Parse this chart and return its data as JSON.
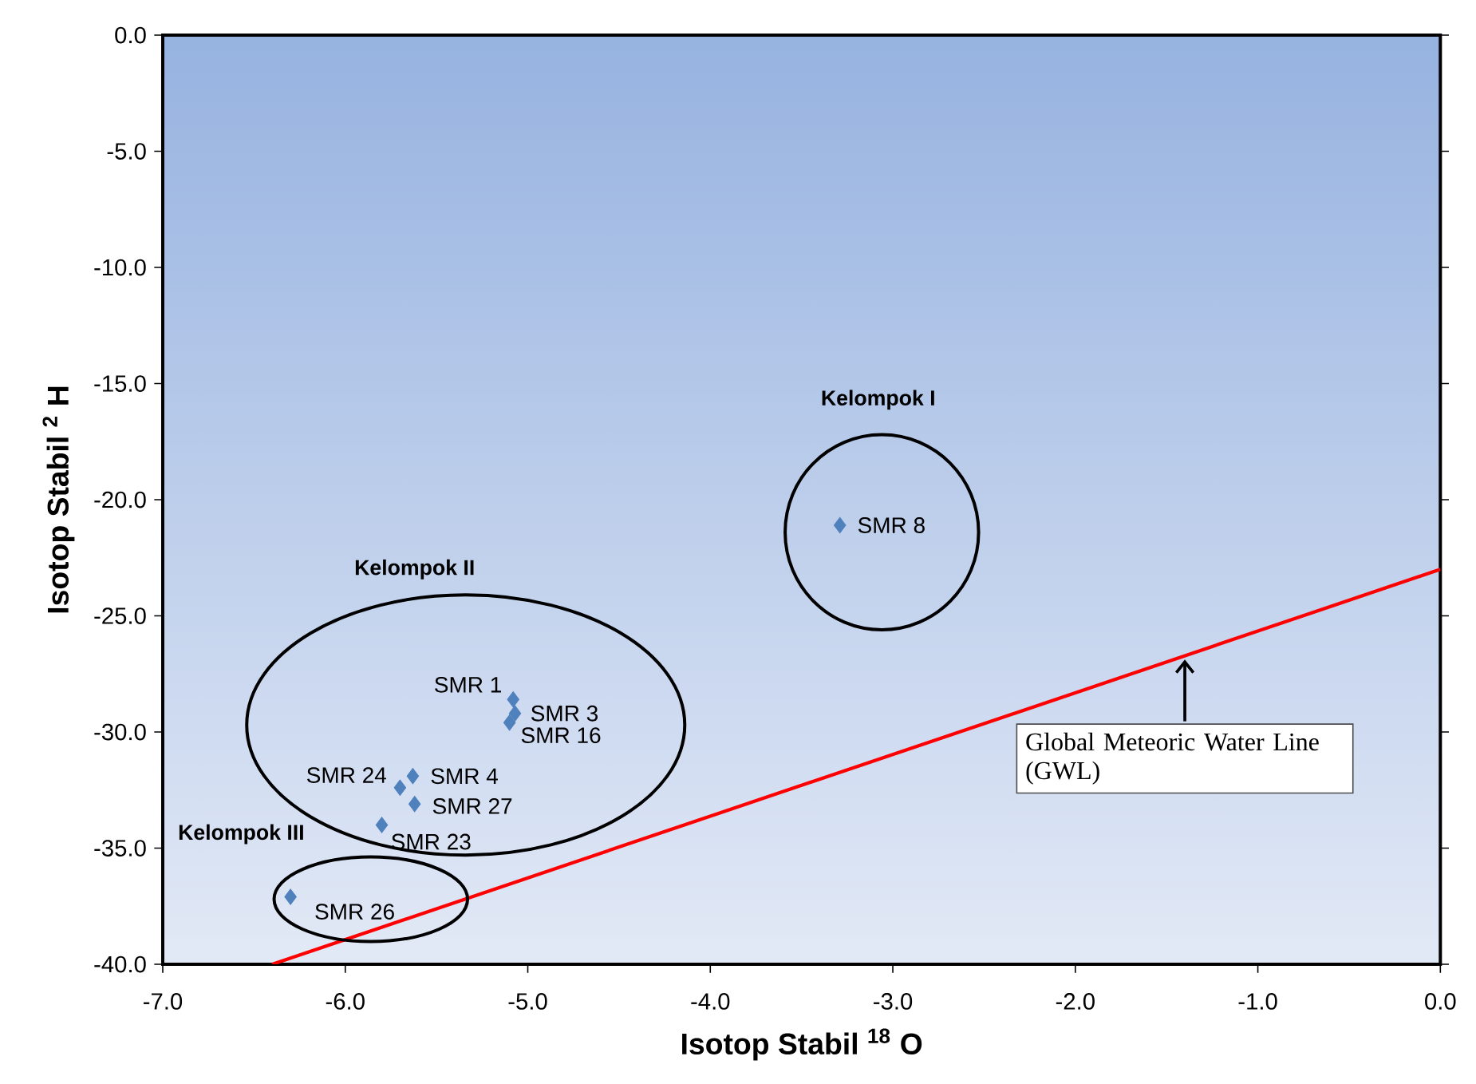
{
  "chart_data": {
    "type": "scatter",
    "xlabel": "Isotop Stabil $^{18}$ O",
    "ylabel": "Isotop Stabil $^{2}$ H",
    "xlim": [
      -7,
      0
    ],
    "ylim": [
      -40,
      0
    ],
    "xticks": [
      {
        "value": -7,
        "label": "-7.0"
      },
      {
        "value": -6,
        "label": "-6.0"
      },
      {
        "value": -5,
        "label": "-5.0"
      },
      {
        "value": -4,
        "label": "-4.0"
      },
      {
        "value": -3,
        "label": "-3.0"
      },
      {
        "value": -2,
        "label": "-2.0"
      },
      {
        "value": -1,
        "label": "-1.0"
      },
      {
        "value": 0,
        "label": "0.0"
      }
    ],
    "yticks": [
      {
        "value": -40,
        "label": "-40.0"
      },
      {
        "value": -35,
        "label": "-35.0"
      },
      {
        "value": -30,
        "label": "-30.0"
      },
      {
        "value": -25,
        "label": "-25.0"
      },
      {
        "value": -20,
        "label": "-20.0"
      },
      {
        "value": -15,
        "label": "-15.0"
      },
      {
        "value": -10,
        "label": "-10.0"
      },
      {
        "value": -5,
        "label": "-5.0"
      },
      {
        "value": 0,
        "label": "0.0"
      }
    ],
    "series": [
      {
        "color": "#4f81bd",
        "marker": "diamond",
        "x": [
          -5.08,
          -5.07,
          -5.1,
          -5.63,
          -5.7,
          -5.62,
          -5.8,
          -6.3,
          -3.29
        ],
        "values": [
          -28.6,
          -29.2,
          -29.6,
          -31.9,
          -32.4,
          -33.1,
          -34.0,
          -37.1,
          -21.1
        ],
        "value_labels": [
          "SMR 1",
          "SMR 3",
          "SMR 16",
          "SMR 4",
          "SMR 24",
          "SMR 27",
          "SMR 23",
          "SMR 26",
          "SMR 8"
        ]
      },
      {
        "type": "line",
        "color": "#ff0000",
        "marker": "none",
        "line_style": "solid",
        "x": [
          -6.4,
          0
        ],
        "values": [
          -40,
          -23
        ]
      }
    ],
    "annotations": [
      "Kelompok  I",
      "Kelompok  II",
      "Kelompok  III",
      {
        "text": "Global Meteoric Water Line (GWL)",
        "x": -1.4,
        "y": -26.7
      }
    ]
  }
}
